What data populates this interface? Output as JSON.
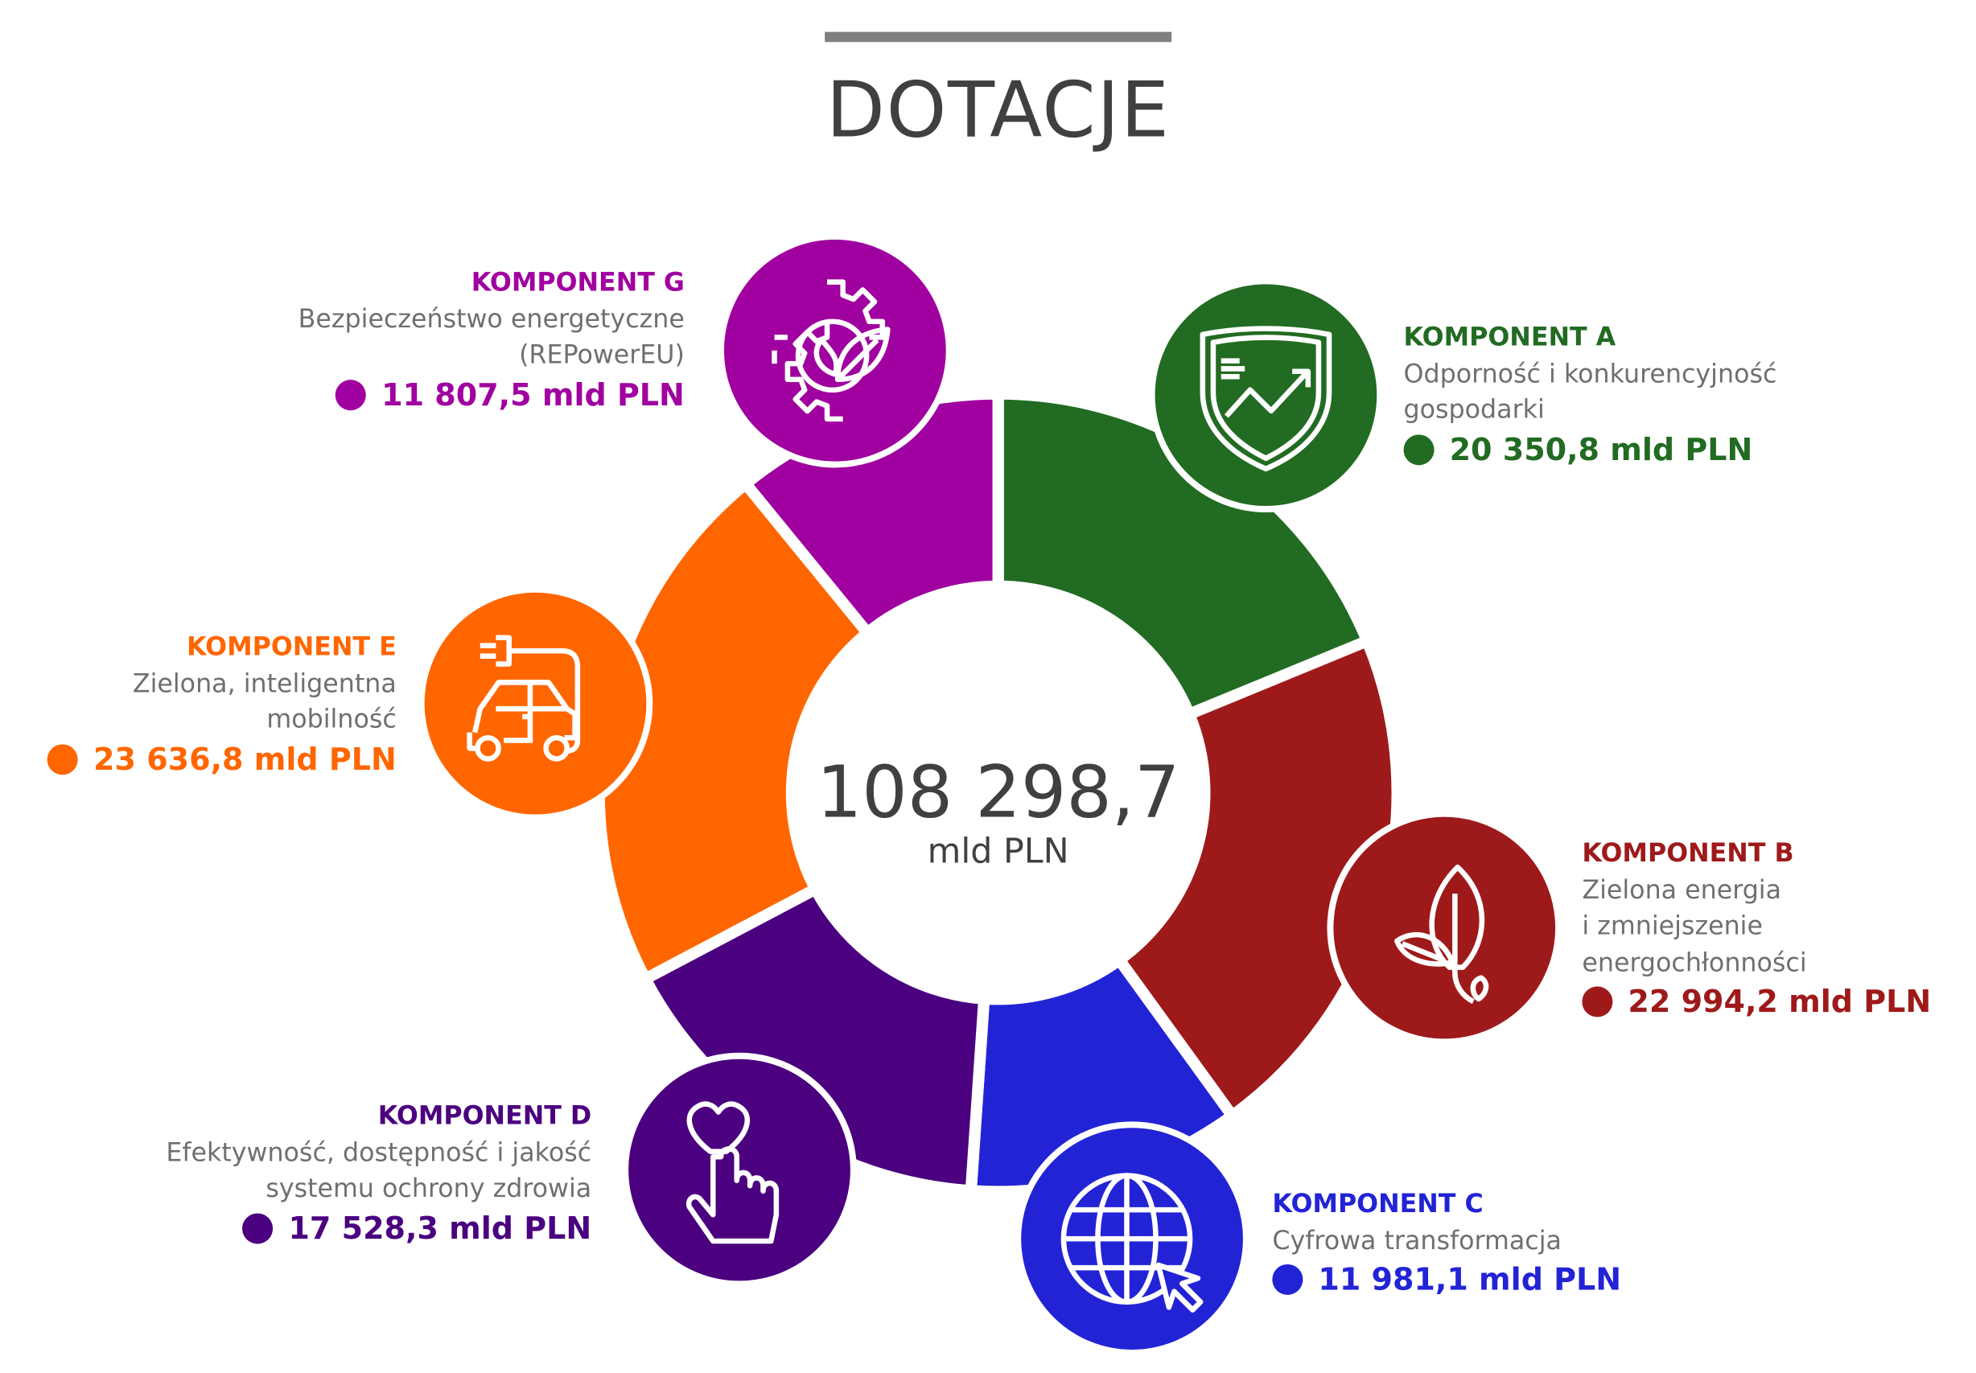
{
  "title": "DOTACJE",
  "total": {
    "value": "108 298,7",
    "unit": "mld PLN"
  },
  "chart_data": {
    "type": "pie",
    "title": "DOTACJE",
    "total": 108298.7,
    "unit": "mld PLN",
    "categories": [
      "KOMPONENT A",
      "KOMPONENT B",
      "KOMPONENT C",
      "KOMPONENT D",
      "KOMPONENT E",
      "KOMPONENT G"
    ],
    "values": [
      20350.8,
      22994.2,
      11981.1,
      17528.3,
      23636.8,
      11807.5
    ],
    "colors": [
      "#226b22",
      "#9e1a1a",
      "#2323d6",
      "#4b007f",
      "#ff6600",
      "#a0009f"
    ]
  },
  "components": {
    "A": {
      "name": "KOMPONENT A",
      "desc": [
        "Odporność i konkurencyjność",
        "gospodarki"
      ],
      "value": "20 350,8 mld PLN",
      "color": "#226b22",
      "icon": "shield-chart-icon"
    },
    "B": {
      "name": "KOMPONENT B",
      "desc": [
        "Zielona energia",
        "i zmniejszenie",
        "energochłonności"
      ],
      "value": "22 994,2 mld PLN",
      "color": "#9e1a1a",
      "icon": "leaf-icon"
    },
    "C": {
      "name": "KOMPONENT C",
      "desc": [
        "Cyfrowa transformacja"
      ],
      "value": "11 981,1 mld PLN",
      "color": "#2323d6",
      "icon": "globe-cursor-icon"
    },
    "D": {
      "name": "KOMPONENT D",
      "desc": [
        "Efektywność, dostępność i jakość",
        "systemu ochrony zdrowia"
      ],
      "value": "17 528,3 mld PLN",
      "color": "#4b007f",
      "icon": "heart-hand-icon"
    },
    "E": {
      "name": "KOMPONENT E",
      "desc": [
        "Zielona, inteligentna",
        "mobilność"
      ],
      "value": "23 636,8 mld PLN",
      "color": "#ff6600",
      "icon": "electric-car-icon"
    },
    "G": {
      "name": "KOMPONENT G",
      "desc": [
        "Bezpieczeństwo energetyczne",
        "(REPowerEU)"
      ],
      "value": "11 807,5 mld PLN",
      "color": "#a0009f",
      "icon": "gear-leaf-icon"
    }
  }
}
